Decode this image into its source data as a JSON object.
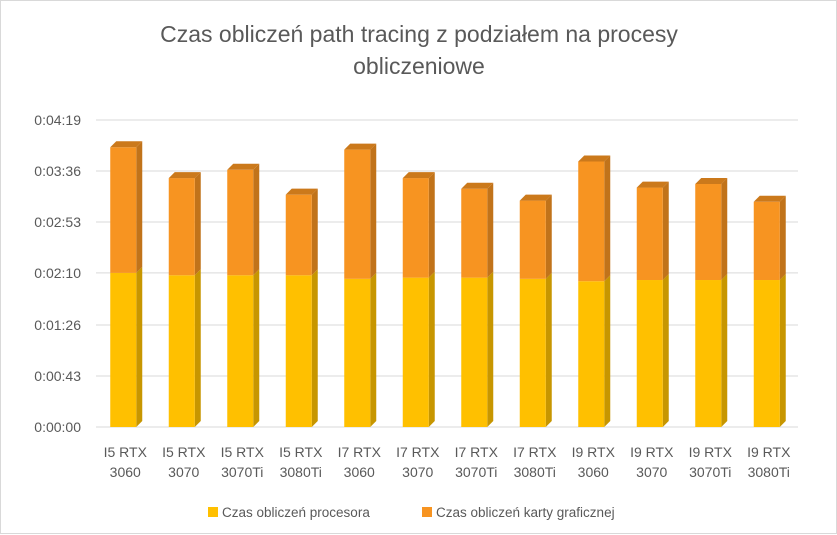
{
  "chart_data": {
    "type": "bar",
    "stacked": true,
    "title_lines": [
      "Czas obliczeń path tracing z podziałem na procesy",
      "obliczeniowe"
    ],
    "categories": [
      [
        "I5 RTX",
        "3060"
      ],
      [
        "I5 RTX",
        "3070"
      ],
      [
        "I5 RTX",
        "3070Ti"
      ],
      [
        "I5 RTX",
        "3080Ti"
      ],
      [
        "I7 RTX",
        "3060"
      ],
      [
        "I7 RTX",
        "3070"
      ],
      [
        "I7 RTX",
        "3070Ti"
      ],
      [
        "I7 RTX",
        "3080Ti"
      ],
      [
        "I9 RTX",
        "3060"
      ],
      [
        "I9 RTX",
        "3070"
      ],
      [
        "I9 RTX",
        "3070Ti"
      ],
      [
        "I9 RTX",
        "3080Ti"
      ]
    ],
    "y_unit": "seconds",
    "y_ticks": [
      {
        "value": 0,
        "label": "0:00:00"
      },
      {
        "value": 43,
        "label": "0:00:43"
      },
      {
        "value": 86,
        "label": "0:01:26"
      },
      {
        "value": 130,
        "label": "0:02:10"
      },
      {
        "value": 173,
        "label": "0:02:53"
      },
      {
        "value": 216,
        "label": "0:03:36"
      },
      {
        "value": 259,
        "label": "0:04:19"
      }
    ],
    "ylim": [
      0,
      259
    ],
    "grid": true,
    "legend_position": "bottom",
    "series": [
      {
        "name": "Czas obliczeń procesora",
        "color": "#FFC000",
        "values": [
          130,
          128,
          128,
          128,
          125,
          126,
          126,
          125,
          123,
          124,
          124,
          124
        ]
      },
      {
        "name": "Czas obliczeń karty graficznej",
        "color": "#F79421",
        "values": [
          106,
          82,
          89,
          68,
          109,
          84,
          75,
          66,
          101,
          78,
          81,
          66
        ]
      }
    ]
  }
}
